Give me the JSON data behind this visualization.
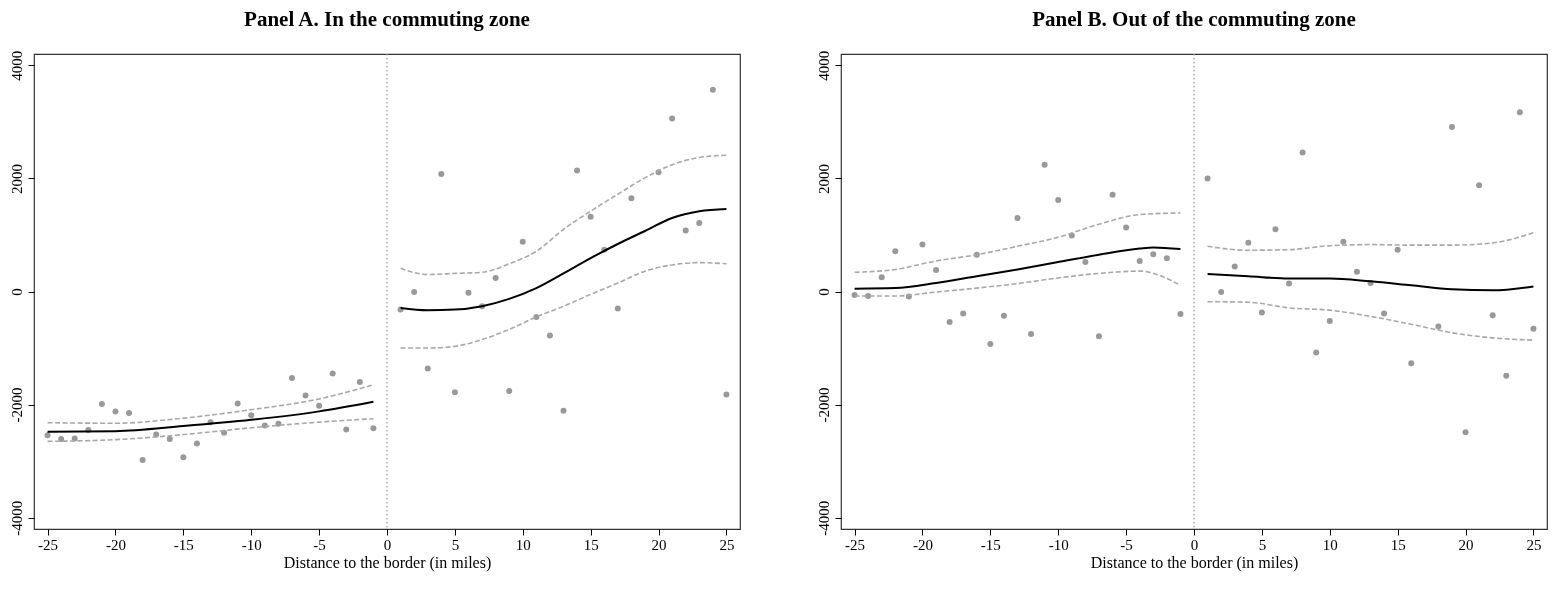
{
  "chart_data": [
    {
      "type": "scatter",
      "title": "Panel A. In the commuting zone",
      "xlabel": "Distance to the border (in miles)",
      "xlim": [
        -26,
        26
      ],
      "ylim": [
        -4200,
        4200
      ],
      "xticks": [
        -25,
        -20,
        -15,
        -10,
        -5,
        0,
        5,
        10,
        15,
        20,
        25
      ],
      "yticks": [
        -4000,
        -2000,
        0,
        2000,
        4000
      ],
      "ref_lines": [
        {
          "axis": "x",
          "value": 0,
          "color": "#999999",
          "line_style": "dotted"
        }
      ],
      "series": [
        {
          "marker": "circle",
          "color": "#999999",
          "x": [
            -25,
            -24,
            -23,
            -22,
            -21,
            -20,
            -19,
            -18,
            -17,
            -16,
            -15,
            -14,
            -13,
            -12,
            -11,
            -10,
            -9,
            -8,
            -7,
            -6,
            -5,
            -4,
            -3,
            -2,
            -1,
            1,
            2,
            3,
            4,
            5,
            6,
            7,
            8,
            9,
            10,
            11,
            12,
            13,
            14,
            15,
            16,
            17,
            18,
            20,
            21,
            22,
            23,
            24,
            25
          ],
          "values": [
            -2540,
            -2610,
            -2600,
            -2450,
            -1990,
            -2120,
            -2150,
            -2980,
            -2530,
            -2610,
            -2930,
            -2690,
            -2310,
            -2500,
            -1980,
            -2190,
            -2370,
            -2340,
            -1530,
            -1840,
            -2020,
            -1450,
            -2440,
            -1600,
            -2420,
            -320,
            -10,
            -1360,
            2080,
            -1780,
            -20,
            -260,
            240,
            -1760,
            880,
            -450,
            -780,
            -2110,
            2140,
            1320,
            740,
            -300,
            1650,
            2110,
            3060,
            1080,
            1210,
            3570,
            -1820
          ]
        },
        {
          "type": "line",
          "color": "#000000",
          "line_style": "solid",
          "x": [
            -25,
            -20,
            -15,
            -10,
            -5,
            -1
          ],
          "values": [
            -2480,
            -2470,
            -2380,
            -2270,
            -2120,
            -1950
          ]
        },
        {
          "type": "line",
          "color": "#a8a8a8",
          "line_style": "dashed",
          "x": [
            -25,
            -20,
            -15,
            -10,
            -5,
            -1
          ],
          "values": [
            -2320,
            -2330,
            -2240,
            -2090,
            -1900,
            -1650
          ]
        },
        {
          "type": "line",
          "color": "#a8a8a8",
          "line_style": "dashed",
          "x": [
            -25,
            -20,
            -15,
            -10,
            -5,
            -1
          ],
          "values": [
            -2650,
            -2620,
            -2530,
            -2410,
            -2310,
            -2250
          ]
        },
        {
          "type": "line",
          "color": "#000000",
          "line_style": "solid",
          "x": [
            1,
            3,
            5,
            7,
            9,
            11,
            13,
            15,
            17,
            19,
            21,
            23,
            25
          ],
          "values": [
            -290,
            -330,
            -320,
            -260,
            -130,
            60,
            320,
            590,
            840,
            1070,
            1300,
            1420,
            1460
          ]
        },
        {
          "type": "line",
          "color": "#a8a8a8",
          "line_style": "dashed",
          "x": [
            1,
            3,
            5,
            7,
            9,
            11,
            13,
            15,
            17,
            19,
            21,
            23,
            25
          ],
          "values": [
            410,
            300,
            320,
            340,
            490,
            710,
            1100,
            1420,
            1720,
            2010,
            2240,
            2370,
            2410
          ]
        },
        {
          "type": "line",
          "color": "#a8a8a8",
          "line_style": "dashed",
          "x": [
            1,
            3,
            5,
            7,
            9,
            11,
            13,
            15,
            17,
            19,
            21,
            23,
            25
          ],
          "values": [
            -1000,
            -1000,
            -970,
            -850,
            -670,
            -450,
            -260,
            -50,
            150,
            360,
            470,
            510,
            490
          ]
        }
      ]
    },
    {
      "type": "scatter",
      "title": "Panel B. Out of the commuting zone",
      "xlabel": "Distance to the border (in miles)",
      "xlim": [
        -26,
        26
      ],
      "ylim": [
        -4200,
        4200
      ],
      "xticks": [
        -25,
        -20,
        -15,
        -10,
        -5,
        0,
        5,
        10,
        15,
        20,
        25
      ],
      "yticks": [
        -4000,
        -2000,
        0,
        2000,
        4000
      ],
      "ref_lines": [
        {
          "axis": "x",
          "value": 0,
          "color": "#999999",
          "line_style": "dotted"
        }
      ],
      "series": [
        {
          "marker": "circle",
          "color": "#999999",
          "x": [
            -25,
            -24,
            -23,
            -22,
            -21,
            -20,
            -19,
            -18,
            -17,
            -16,
            -15,
            -14,
            -13,
            -12,
            -11,
            -10,
            -9,
            -8,
            -7,
            -6,
            -5,
            -4,
            -3,
            -2,
            -1,
            1,
            2,
            3,
            4,
            5,
            6,
            7,
            8,
            9,
            10,
            11,
            12,
            13,
            14,
            15,
            16,
            18,
            19,
            20,
            21,
            22,
            23,
            24,
            25
          ],
          "values": [
            -60,
            -80,
            250,
            710,
            -90,
            830,
            380,
            -540,
            -390,
            650,
            -930,
            -430,
            1300,
            -750,
            2240,
            1620,
            990,
            520,
            -790,
            1710,
            1130,
            540,
            660,
            590,
            -400,
            2000,
            -10,
            440,
            860,
            -370,
            1100,
            140,
            2460,
            -1080,
            -520,
            880,
            350,
            150,
            -390,
            740,
            -1270,
            -620,
            2910,
            -2490,
            1880,
            -420,
            -1490,
            3170,
            -660
          ]
        },
        {
          "type": "line",
          "color": "#000000",
          "line_style": "solid",
          "x": [
            -25,
            -22,
            -19,
            -16,
            -13,
            -10,
            -7,
            -4,
            -3,
            -1
          ],
          "values": [
            50,
            60,
            150,
            270,
            390,
            520,
            650,
            760,
            780,
            750
          ]
        },
        {
          "type": "line",
          "color": "#a8a8a8",
          "line_style": "dashed",
          "x": [
            -25,
            -22,
            -19,
            -16,
            -13,
            -10,
            -7,
            -4,
            -1
          ],
          "values": [
            340,
            390,
            540,
            650,
            800,
            960,
            1190,
            1360,
            1390
          ]
        },
        {
          "type": "line",
          "color": "#a8a8a8",
          "line_style": "dashed",
          "x": [
            -25,
            -22,
            -19,
            -16,
            -13,
            -10,
            -7,
            -4,
            -1
          ],
          "values": [
            -80,
            -80,
            -10,
            60,
            140,
            240,
            320,
            360,
            110
          ]
        },
        {
          "type": "line",
          "color": "#000000",
          "line_style": "solid",
          "x": [
            1,
            4,
            7,
            10,
            13,
            16,
            19,
            22,
            25
          ],
          "values": [
            310,
            270,
            230,
            230,
            180,
            110,
            40,
            20,
            90
          ]
        },
        {
          "type": "line",
          "color": "#a8a8a8",
          "line_style": "dashed",
          "x": [
            1,
            4,
            7,
            10,
            13,
            16,
            19,
            22,
            25
          ],
          "values": [
            800,
            730,
            740,
            810,
            830,
            820,
            820,
            860,
            1040
          ]
        },
        {
          "type": "line",
          "color": "#a8a8a8",
          "line_style": "dashed",
          "x": [
            1,
            4,
            7,
            10,
            13,
            16,
            19,
            22,
            25
          ],
          "values": [
            -180,
            -190,
            -290,
            -330,
            -440,
            -580,
            -730,
            -820,
            -860
          ]
        }
      ]
    }
  ]
}
